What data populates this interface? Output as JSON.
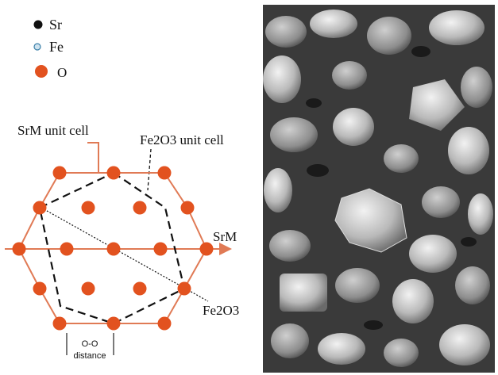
{
  "legend": [
    {
      "symbol": "Sr",
      "color": "#111111"
    },
    {
      "symbol": "Fe",
      "color": "#cfe3ef"
    },
    {
      "symbol": "O",
      "color": "#e2521f"
    }
  ],
  "labels": {
    "srm_unit_cell": "SrM unit cell",
    "fe2o3_unit_cell": "Fe2O3 unit cell",
    "srm_axis": "SrM",
    "fe2o3_axis": "Fe2O3",
    "oo_distance_line1": "O-O",
    "oo_distance_line2": "distance"
  },
  "colors": {
    "oxygen": "#e2521f",
    "cell_outline": "#e07a55",
    "dashed": "#111111",
    "micrograph_bg": "#3a3a3a"
  },
  "micrograph": {
    "description_icon": "sem-micrograph-image"
  }
}
